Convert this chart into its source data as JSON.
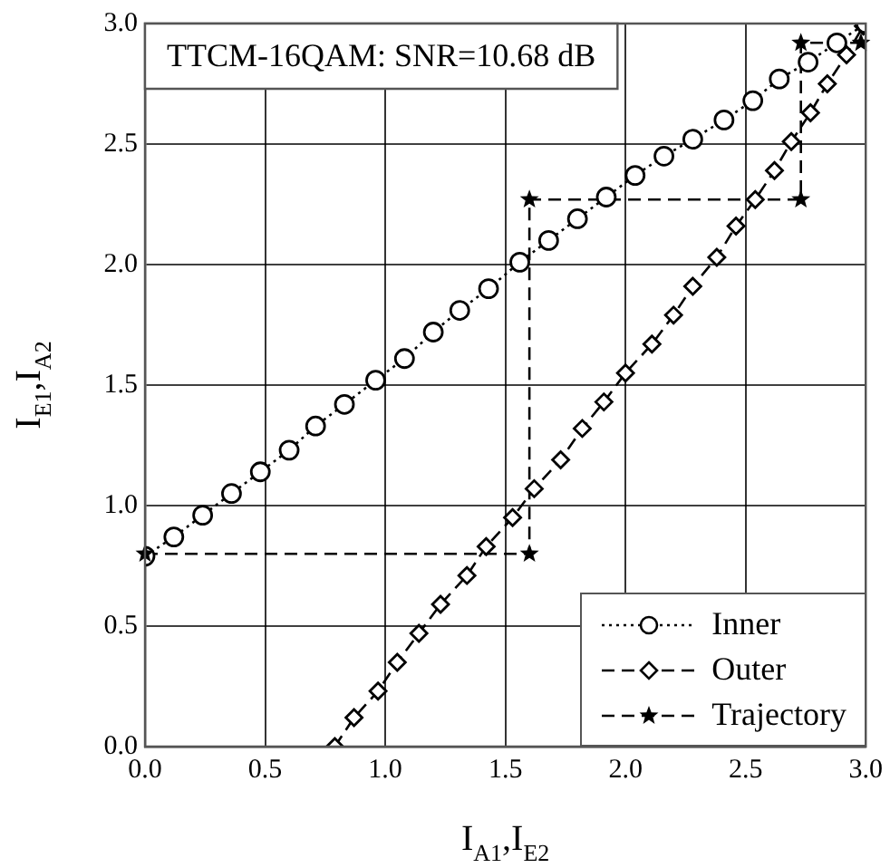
{
  "chart_data": {
    "type": "line",
    "title": "TTCM-16QAM: SNR=10.68 dB",
    "xlabel": "I$_{A1}$,I$_{E2}$",
    "ylabel": "I$_{E1}$,I$_{A2}$",
    "xlim": [
      0,
      3
    ],
    "ylim": [
      0,
      3
    ],
    "xticks": [
      {
        "value": 0,
        "label": "0.0"
      },
      {
        "value": 0.5,
        "label": "0.5"
      },
      {
        "value": 1,
        "label": "1.0"
      },
      {
        "value": 1.5,
        "label": "1.5"
      },
      {
        "value": 2,
        "label": "2.0"
      },
      {
        "value": 2.5,
        "label": "2.5"
      },
      {
        "value": 3,
        "label": "3.0"
      }
    ],
    "yticks": [
      {
        "value": 0,
        "label": "0.0"
      },
      {
        "value": 0.5,
        "label": "0.5"
      },
      {
        "value": 1,
        "label": "1.0"
      },
      {
        "value": 1.5,
        "label": "1.5"
      },
      {
        "value": 2,
        "label": "2.0"
      },
      {
        "value": 2.5,
        "label": "2.5"
      },
      {
        "value": 3,
        "label": "3.0"
      }
    ],
    "grid": true,
    "legend": "bottom right",
    "series": [
      {
        "name": "Inner",
        "color": "#000000",
        "marker": "circle",
        "line_style": "dotted",
        "x": [
          0,
          0.12,
          0.24,
          0.36,
          0.48,
          0.6,
          0.71,
          0.83,
          0.96,
          1.08,
          1.2,
          1.31,
          1.43,
          1.56,
          1.68,
          1.8,
          1.92,
          2.04,
          2.16,
          2.28,
          2.41,
          2.53,
          2.64,
          2.76,
          2.88,
          3.0
        ],
        "values": [
          0.79,
          0.87,
          0.96,
          1.05,
          1.14,
          1.23,
          1.33,
          1.42,
          1.52,
          1.61,
          1.72,
          1.81,
          1.9,
          2.01,
          2.1,
          2.19,
          2.28,
          2.37,
          2.45,
          2.52,
          2.6,
          2.68,
          2.77,
          2.84,
          2.92,
          3.0
        ]
      },
      {
        "name": "Outer",
        "color": "#000000",
        "marker": "diamond",
        "line_style": "dashed",
        "x": [
          0.79,
          0.87,
          0.97,
          1.05,
          1.14,
          1.23,
          1.34,
          1.42,
          1.53,
          1.62,
          1.73,
          1.82,
          1.91,
          2.0,
          2.11,
          2.2,
          2.28,
          2.38,
          2.46,
          2.54,
          2.62,
          2.69,
          2.77,
          2.84,
          2.92,
          2.99
        ],
        "values": [
          0,
          0.12,
          0.23,
          0.35,
          0.47,
          0.59,
          0.71,
          0.83,
          0.95,
          1.07,
          1.19,
          1.32,
          1.43,
          1.55,
          1.67,
          1.79,
          1.91,
          2.03,
          2.16,
          2.27,
          2.39,
          2.51,
          2.63,
          2.75,
          2.87,
          2.99
        ]
      },
      {
        "name": "Trajectory",
        "color": "#000000",
        "marker": "star",
        "line_style": "dashed",
        "x": [
          0,
          1.6,
          1.6,
          2.73,
          2.73,
          2.98
        ],
        "values": [
          0.8,
          0.8,
          2.27,
          2.27,
          2.92,
          2.92
        ]
      }
    ]
  }
}
